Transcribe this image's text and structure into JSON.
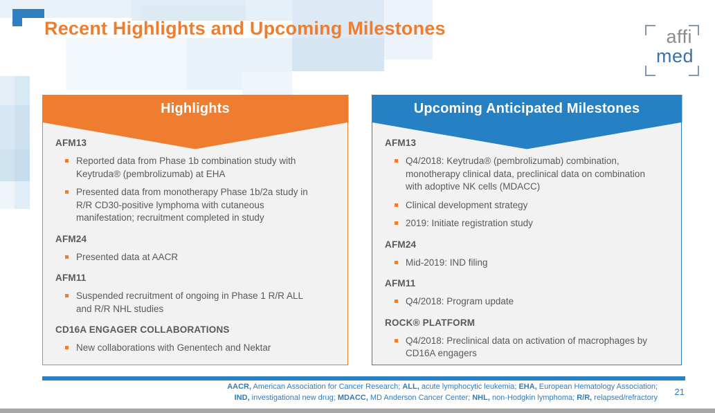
{
  "slide": {
    "title": "Recent Highlights and Upcoming Milestones",
    "page_number": "21"
  },
  "logo": {
    "line1": "affi",
    "line2": "med"
  },
  "boxes": [
    {
      "id": "highlights",
      "title": "Highlights",
      "accent": "#ee7d2f",
      "sections": [
        {
          "heading": "AFM13",
          "bullets": [
            "Reported data from Phase 1b combination study with Keytruda® (pembrolizumab) at EHA",
            "Presented data from monotherapy Phase 1b/2a study in R/R CD30-positive lymphoma with cutaneous manifestation; recruitment completed in study"
          ]
        },
        {
          "heading": "AFM24",
          "bullets": [
            "Presented data at AACR"
          ]
        },
        {
          "heading": "AFM11",
          "bullets": [
            "Suspended recruitment of ongoing in Phase 1 R/R ALL and R/R NHL studies"
          ]
        },
        {
          "heading": "CD16A ENGAGER COLLABORATIONS",
          "bullets": [
            "New collaborations with Genentech and Nektar"
          ]
        }
      ]
    },
    {
      "id": "milestones",
      "title": "Upcoming Anticipated Milestones",
      "accent": "#2581c4",
      "sections": [
        {
          "heading": "AFM13",
          "bullets": [
            "Q4/2018: Keytruda® (pembrolizumab) combination, monotherapy clinical data, preclinical data on combination with adoptive NK cells (MDACC)",
            "Clinical development strategy",
            "2019: Initiate registration study"
          ]
        },
        {
          "heading": "AFM24",
          "bullets": [
            "Mid-2019: IND filing"
          ]
        },
        {
          "heading": "AFM11",
          "bullets": [
            "Q4/2018: Program update"
          ]
        },
        {
          "heading": "ROCK® PLATFORM",
          "bullets": [
            "Q4/2018: Preclinical data on activation of macrophages by CD16A engagers"
          ]
        }
      ]
    }
  ],
  "footer": {
    "lines": [
      [
        {
          "t": "AACR,",
          "b": true
        },
        {
          "t": " American Association for Cancer Research; ",
          "b": false
        },
        {
          "t": "ALL,",
          "b": true
        },
        {
          "t": " acute lymphocytic leukemia; ",
          "b": false
        },
        {
          "t": "EHA,",
          "b": true
        },
        {
          "t": " European Hematology Association;",
          "b": false
        }
      ],
      [
        {
          "t": "IND,",
          "b": true
        },
        {
          "t": " investigational new drug; ",
          "b": false
        },
        {
          "t": "MDACC,",
          "b": true
        },
        {
          "t": " MD Anderson Cancer Center; ",
          "b": false
        },
        {
          "t": "NHL,",
          "b": true
        },
        {
          "t": " non-Hodgkin lymphoma; ",
          "b": false
        },
        {
          "t": "R/R,",
          "b": true
        },
        {
          "t": " relapsed/refractory",
          "b": false
        }
      ]
    ]
  },
  "colors": {
    "accent_orange": "#ee7d2f",
    "accent_blue": "#2581c4",
    "text_gray": "#595959",
    "footer_blue": "#2e7bbd",
    "panel_bg": "#f2f2f2",
    "bottom_bar_gray": "#a6a6a6",
    "bracket_blue": "#2f7fc1",
    "logo_gray": "#8b8b8b",
    "logo_blue": "#3a70ab",
    "logo_bracket": "#7f99b5"
  }
}
